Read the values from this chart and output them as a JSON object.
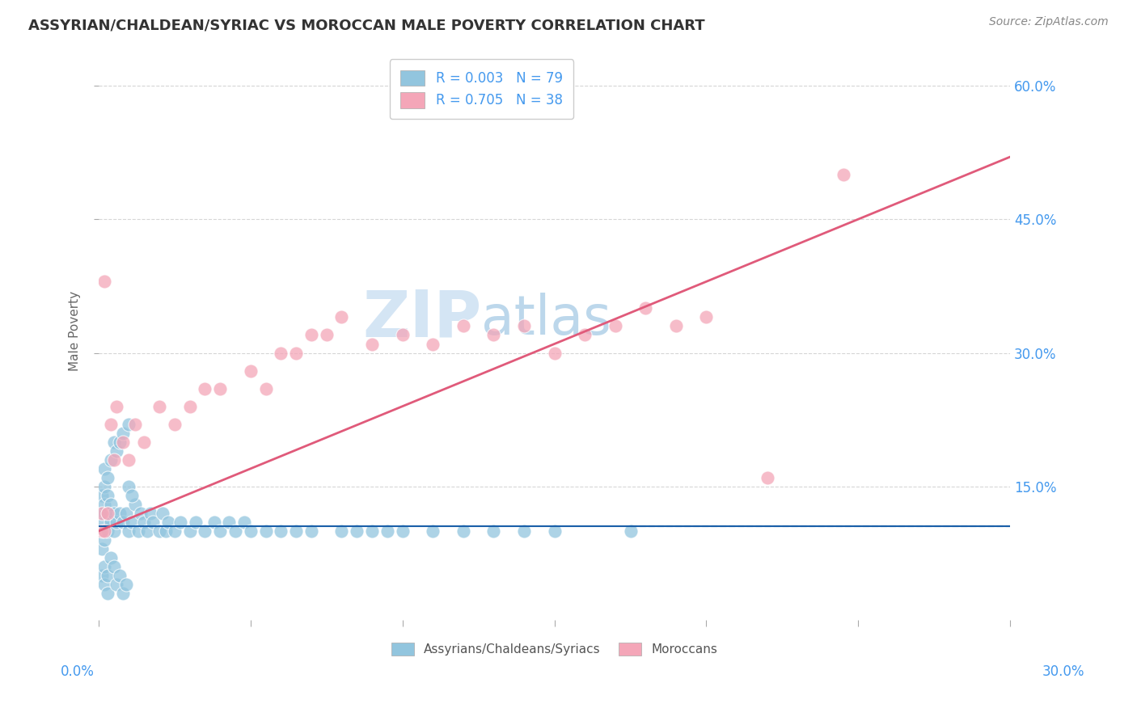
{
  "title": "ASSYRIAN/CHALDEAN/SYRIAC VS MOROCCAN MALE POVERTY CORRELATION CHART",
  "source": "Source: ZipAtlas.com",
  "ylabel": "Male Poverty",
  "watermark": "ZIPatlas",
  "legend_label_assyrian": "Assyrians/Chaldeans/Syriacs",
  "legend_label_moroccan": "Moroccans",
  "color_blue": "#92c5de",
  "color_pink": "#f4a6b8",
  "color_blue_line": "#1a5fa8",
  "color_pink_line": "#e05a7a",
  "color_axis_label": "#4499ee",
  "xlim": [
    0.0,
    0.3
  ],
  "ylim": [
    0.0,
    0.65
  ],
  "yticks": [
    0.15,
    0.3,
    0.45,
    0.6
  ],
  "ytick_labels": [
    "15.0%",
    "30.0%",
    "45.0%",
    "60.0%"
  ],
  "background_color": "#ffffff",
  "grid_color": "#cccccc",
  "assyrian_x": [
    0.001,
    0.001,
    0.001,
    0.001,
    0.002,
    0.002,
    0.002,
    0.002,
    0.002,
    0.003,
    0.003,
    0.003,
    0.003,
    0.004,
    0.004,
    0.004,
    0.005,
    0.005,
    0.005,
    0.006,
    0.006,
    0.007,
    0.007,
    0.008,
    0.008,
    0.009,
    0.01,
    0.01,
    0.011,
    0.012,
    0.013,
    0.014,
    0.015,
    0.016,
    0.017,
    0.018,
    0.02,
    0.021,
    0.022,
    0.023,
    0.025,
    0.027,
    0.03,
    0.032,
    0.035,
    0.038,
    0.04,
    0.043,
    0.045,
    0.048,
    0.05,
    0.055,
    0.06,
    0.065,
    0.07,
    0.08,
    0.085,
    0.09,
    0.095,
    0.1,
    0.11,
    0.12,
    0.13,
    0.14,
    0.15,
    0.001,
    0.002,
    0.002,
    0.003,
    0.003,
    0.004,
    0.005,
    0.006,
    0.007,
    0.008,
    0.009,
    0.01,
    0.011,
    0.175
  ],
  "assyrian_y": [
    0.08,
    0.1,
    0.12,
    0.14,
    0.09,
    0.11,
    0.13,
    0.15,
    0.17,
    0.1,
    0.12,
    0.14,
    0.16,
    0.11,
    0.13,
    0.18,
    0.1,
    0.12,
    0.2,
    0.11,
    0.19,
    0.12,
    0.2,
    0.11,
    0.21,
    0.12,
    0.1,
    0.22,
    0.11,
    0.13,
    0.1,
    0.12,
    0.11,
    0.1,
    0.12,
    0.11,
    0.1,
    0.12,
    0.1,
    0.11,
    0.1,
    0.11,
    0.1,
    0.11,
    0.1,
    0.11,
    0.1,
    0.11,
    0.1,
    0.11,
    0.1,
    0.1,
    0.1,
    0.1,
    0.1,
    0.1,
    0.1,
    0.1,
    0.1,
    0.1,
    0.1,
    0.1,
    0.1,
    0.1,
    0.1,
    0.05,
    0.04,
    0.06,
    0.03,
    0.05,
    0.07,
    0.06,
    0.04,
    0.05,
    0.03,
    0.04,
    0.15,
    0.14,
    0.1
  ],
  "moroccan_x": [
    0.001,
    0.001,
    0.002,
    0.002,
    0.003,
    0.004,
    0.005,
    0.006,
    0.008,
    0.01,
    0.012,
    0.015,
    0.02,
    0.025,
    0.03,
    0.035,
    0.04,
    0.05,
    0.055,
    0.06,
    0.065,
    0.07,
    0.075,
    0.08,
    0.09,
    0.1,
    0.11,
    0.12,
    0.13,
    0.14,
    0.15,
    0.16,
    0.17,
    0.18,
    0.19,
    0.2,
    0.22,
    0.245
  ],
  "moroccan_y": [
    0.1,
    0.12,
    0.1,
    0.38,
    0.12,
    0.22,
    0.18,
    0.24,
    0.2,
    0.18,
    0.22,
    0.2,
    0.24,
    0.22,
    0.24,
    0.26,
    0.26,
    0.28,
    0.26,
    0.3,
    0.3,
    0.32,
    0.32,
    0.34,
    0.31,
    0.32,
    0.31,
    0.33,
    0.32,
    0.33,
    0.3,
    0.32,
    0.33,
    0.35,
    0.33,
    0.34,
    0.16,
    0.5
  ],
  "ass_trend_y0": 0.105,
  "ass_trend_y1": 0.105,
  "mor_trend_x0": 0.0,
  "mor_trend_y0": 0.1,
  "mor_trend_x1": 0.3,
  "mor_trend_y1": 0.52
}
